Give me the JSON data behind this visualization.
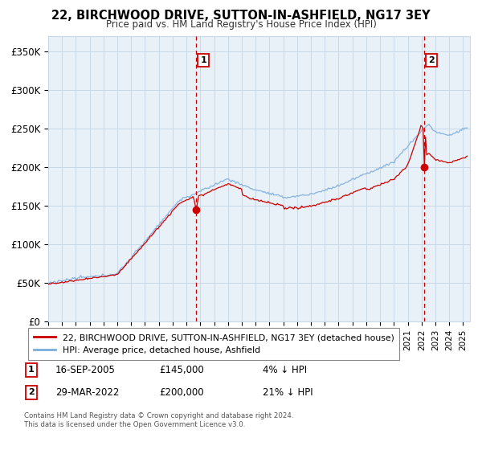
{
  "title": "22, BIRCHWOOD DRIVE, SUTTON-IN-ASHFIELD, NG17 3EY",
  "subtitle": "Price paid vs. HM Land Registry's House Price Index (HPI)",
  "ylim": [
    0,
    370000
  ],
  "yticks": [
    0,
    50000,
    100000,
    150000,
    200000,
    250000,
    300000,
    350000
  ],
  "ytick_labels": [
    "£0",
    "£50K",
    "£100K",
    "£150K",
    "£200K",
    "£250K",
    "£300K",
    "£350K"
  ],
  "xmin": 1995.0,
  "xmax": 2025.5,
  "transaction1_x": 2005.7,
  "transaction1_y": 145000,
  "transaction1_label": "1",
  "transaction1_date": "16-SEP-2005",
  "transaction1_price": "£145,000",
  "transaction1_hpi": "4% ↓ HPI",
  "transaction2_x": 2022.2,
  "transaction2_y": 200000,
  "transaction2_label": "2",
  "transaction2_date": "29-MAR-2022",
  "transaction2_price": "£200,000",
  "transaction2_hpi": "21% ↓ HPI",
  "line_color_price": "#cc0000",
  "line_color_hpi": "#7aaddb",
  "vline_color": "#cc0000",
  "plot_bg_color": "#e8f0f8",
  "legend_price_label": "22, BIRCHWOOD DRIVE, SUTTON-IN-ASHFIELD, NG17 3EY (detached house)",
  "legend_hpi_label": "HPI: Average price, detached house, Ashfield",
  "footer1": "Contains HM Land Registry data © Crown copyright and database right 2024.",
  "footer2": "This data is licensed under the Open Government Licence v3.0.",
  "bg_color": "#ffffff",
  "grid_color": "#c8d8e8"
}
